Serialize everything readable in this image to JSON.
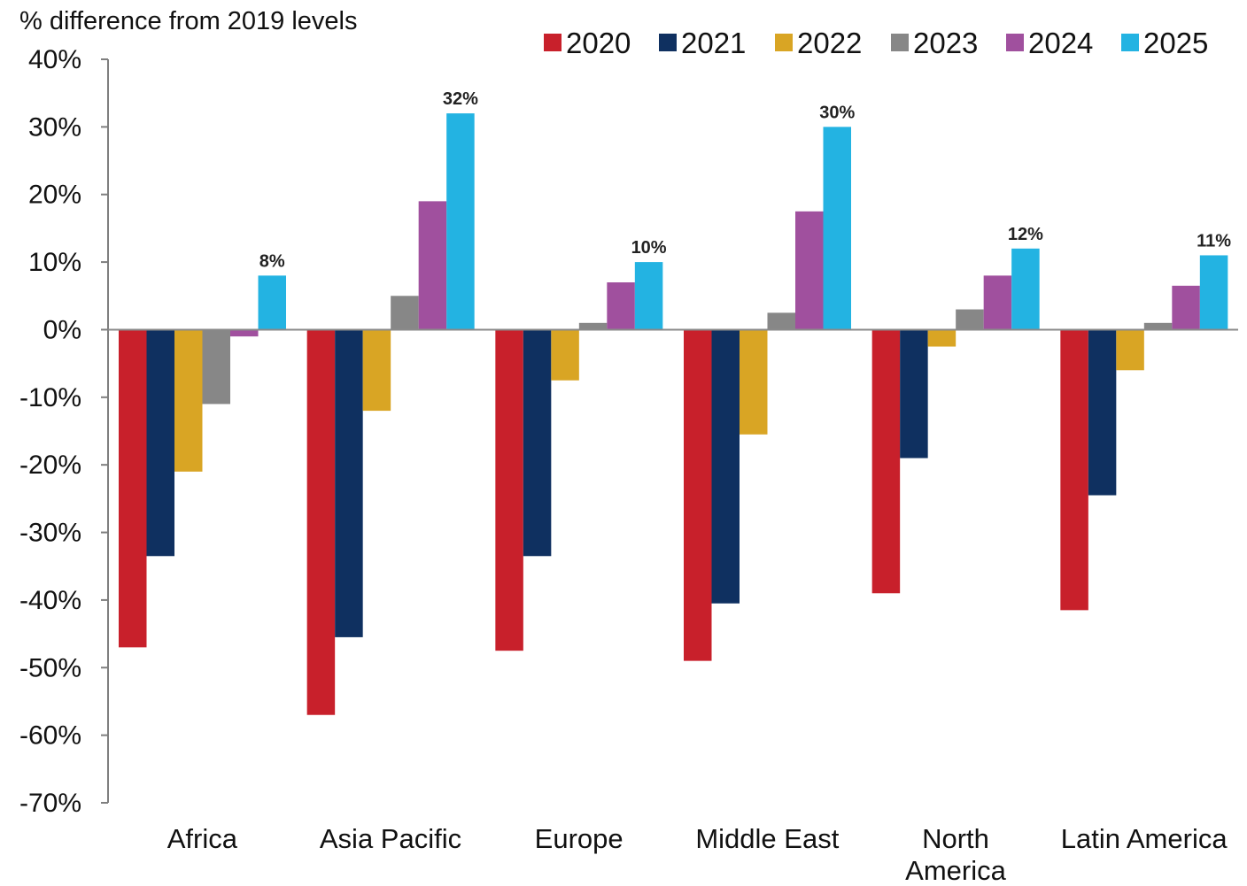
{
  "chart_data": {
    "type": "bar",
    "title": "",
    "ylabel": "% difference from 2019 levels",
    "xlabel": "",
    "ylim": [
      -70,
      40
    ],
    "yticks": [
      40,
      30,
      20,
      10,
      0,
      -10,
      -20,
      -30,
      -40,
      -50,
      -60,
      -70
    ],
    "ytick_format": "percent",
    "grid": false,
    "legend_position": "top-right",
    "categories": [
      "Africa",
      "Asia Pacific",
      "Europe",
      "Middle East",
      "North America",
      "Latin America"
    ],
    "series": [
      {
        "name": "2020",
        "color": "#c8202b",
        "values": [
          -47,
          -57,
          -47.5,
          -49,
          -39,
          -41.5
        ]
      },
      {
        "name": "2021",
        "color": "#0f3060",
        "values": [
          -33.5,
          -45.5,
          -33.5,
          -40.5,
          -19,
          -24.5
        ]
      },
      {
        "name": "2022",
        "color": "#d9a524",
        "values": [
          -21,
          -12,
          -7.5,
          -15.5,
          -2.5,
          -6
        ]
      },
      {
        "name": "2023",
        "color": "#878787",
        "values": [
          -11,
          5,
          1,
          2.5,
          3,
          1
        ]
      },
      {
        "name": "2024",
        "color": "#a0509e",
        "values": [
          -1,
          19,
          7,
          17.5,
          8,
          6.5
        ]
      },
      {
        "name": "2025",
        "color": "#23b3e2",
        "values": [
          8,
          32,
          10,
          30,
          12,
          11
        ]
      }
    ],
    "data_labels": {
      "series": "2025",
      "texts": [
        "8%",
        "32%",
        "10%",
        "30%",
        "12%",
        "11%"
      ]
    }
  }
}
